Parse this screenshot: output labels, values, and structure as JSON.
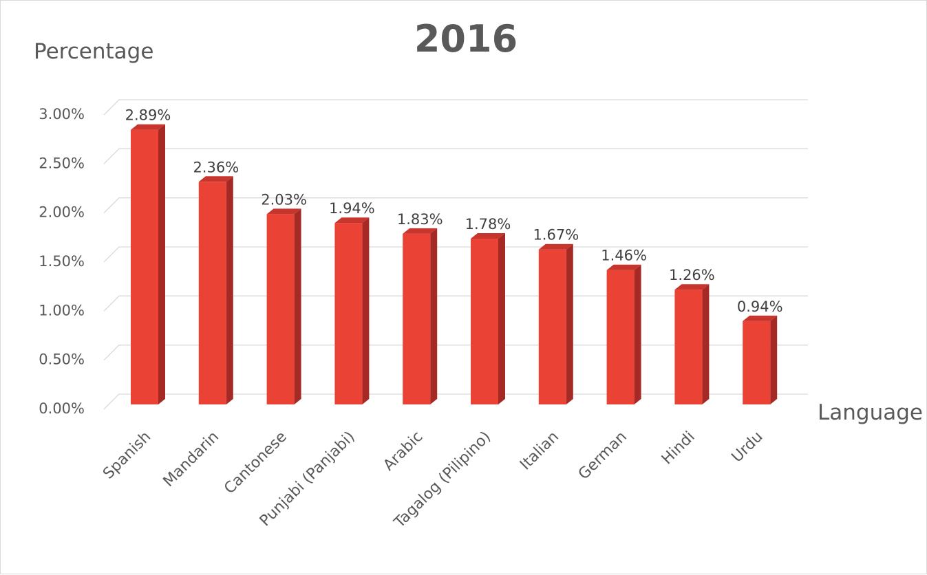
{
  "chart_data": {
    "type": "bar",
    "title": "2016",
    "xlabel": "Language",
    "ylabel": "Percentage",
    "categories": [
      "Spanish",
      "Mandarin",
      "Cantonese",
      "Punjabi (Panjabi)",
      "Arabic",
      "Tagalog (Pilipino)",
      "Italian",
      "German",
      "Hindi",
      "Urdu"
    ],
    "values": [
      2.89,
      2.36,
      2.03,
      1.94,
      1.83,
      1.78,
      1.67,
      1.46,
      1.26,
      0.94
    ],
    "data_labels": [
      "2.89%",
      "2.36%",
      "2.03%",
      "1.94%",
      "1.83%",
      "1.78%",
      "1.67%",
      "1.46%",
      "1.26%",
      "0.94%"
    ],
    "yticks": [
      "0.00%",
      "0.50%",
      "1.00%",
      "1.50%",
      "2.00%",
      "2.50%",
      "3.00%"
    ],
    "ylim": [
      0,
      3.0
    ],
    "grid": true,
    "legend": "none",
    "bar_style": "3d",
    "colors": {
      "bar_front": "#ea4335",
      "bar_side": "#a52a25",
      "bar_top": "#c7352c",
      "grid": "#d9d9d9",
      "text": "#595959"
    }
  }
}
